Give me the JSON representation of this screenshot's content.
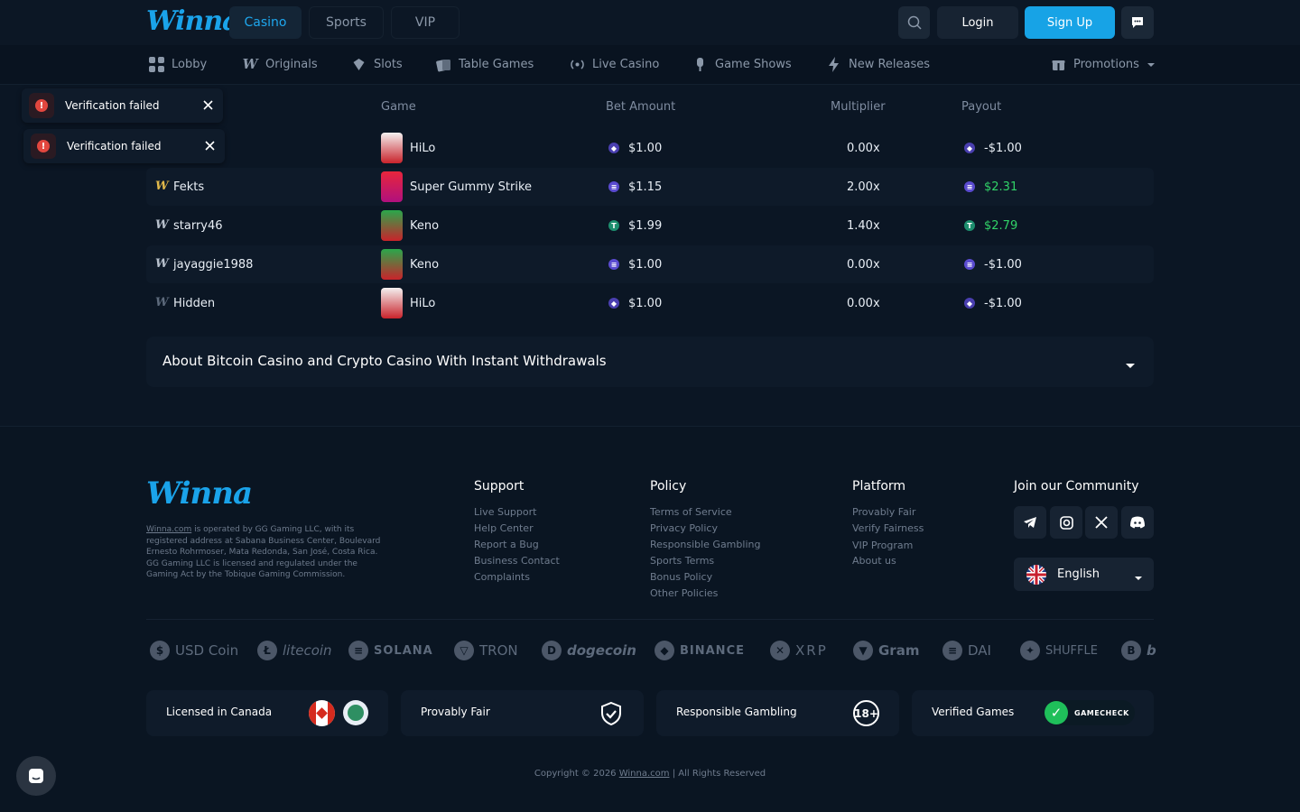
{
  "header": {
    "logo": "Winna",
    "tabs": [
      {
        "label": "Casino",
        "active": true
      },
      {
        "label": "Sports",
        "active": false
      },
      {
        "label": "VIP",
        "active": false
      }
    ],
    "login_label": "Login",
    "signup_label": "Sign Up"
  },
  "nav": {
    "items": [
      {
        "label": "Lobby",
        "icon": "grid-icon"
      },
      {
        "label": "Originals",
        "icon": "winna-w-icon"
      },
      {
        "label": "Slots",
        "icon": "slots-icon"
      },
      {
        "label": "Table Games",
        "icon": "cards-icon"
      },
      {
        "label": "Live Casino",
        "icon": "live-icon"
      },
      {
        "label": "Game Shows",
        "icon": "mic-icon"
      },
      {
        "label": "New Releases",
        "icon": "lightning-icon"
      }
    ],
    "promotions": "Promotions"
  },
  "toasts": [
    {
      "message": "Verification failed"
    },
    {
      "message": "Verification failed"
    }
  ],
  "bets": {
    "headers": {
      "game": "Game",
      "bet_amount": "Bet Amount",
      "multiplier": "Multiplier",
      "payout": "Payout"
    },
    "rows": [
      {
        "user": "",
        "game": "HiLo",
        "bet": "$1.00",
        "multiplier": "0.00x",
        "payout": "-$1.00",
        "coin": "eth",
        "win": false
      },
      {
        "user": "Fekts",
        "game": "Super Gummy Strike",
        "bet": "$1.15",
        "multiplier": "2.00x",
        "payout": "$2.31",
        "coin": "sol",
        "win": true
      },
      {
        "user": "starry46",
        "game": "Keno",
        "bet": "$1.99",
        "multiplier": "1.40x",
        "payout": "$2.79",
        "coin": "usdt",
        "win": true
      },
      {
        "user": "jayaggie1988",
        "game": "Keno",
        "bet": "$1.00",
        "multiplier": "0.00x",
        "payout": "-$1.00",
        "coin": "sol",
        "win": false
      },
      {
        "user": "Hidden",
        "game": "HiLo",
        "bet": "$1.00",
        "multiplier": "0.00x",
        "payout": "-$1.00",
        "coin": "eth",
        "win": false
      }
    ]
  },
  "about": {
    "title": "About Bitcoin Casino and Crypto Casino With Instant Withdrawals"
  },
  "footer": {
    "logo": "Winna",
    "desc_link": "Winna.com",
    "description": " is operated by GG Gaming LLC, with its registered address at Sabana Business Center, Boulevard Ernesto Rohrmoser, Mata Redonda, San José, Costa Rica. GG Gaming LLC is licensed and regulated under the Gaming Act by the Tobique Gaming Commission.",
    "support": {
      "title": "Support",
      "links": [
        "Live Support",
        "Help Center",
        "Report a Bug",
        "Business Contact",
        "Complaints"
      ]
    },
    "policy": {
      "title": "Policy",
      "links": [
        "Terms of Service",
        "Privacy Policy",
        "Responsible Gambling",
        "Sports Terms",
        "Bonus Policy",
        "Other Policies"
      ]
    },
    "platform": {
      "title": "Platform",
      "links": [
        "Provably Fair",
        "Verify Fairness",
        "VIP Program",
        "About us"
      ]
    },
    "community": {
      "title": "Join our Community"
    },
    "language": "English",
    "cryptos": [
      {
        "label": "USD Coin",
        "glyph": "$"
      },
      {
        "label": "litecoin",
        "glyph": "Ł"
      },
      {
        "label": "SOLANA",
        "glyph": "≡"
      },
      {
        "label": "TRON",
        "glyph": "▽"
      },
      {
        "label": "dogecoin",
        "glyph": "D"
      },
      {
        "label": "BINANCE",
        "glyph": "◆"
      },
      {
        "label": "XRP",
        "glyph": "✕"
      },
      {
        "label": "Gram",
        "glyph": "▼"
      },
      {
        "label": "DAI",
        "glyph": "≡"
      },
      {
        "label": "SHUFFLE",
        "glyph": "✦"
      },
      {
        "label": "b",
        "glyph": "B"
      }
    ],
    "badges": [
      {
        "label": "Licensed in Canada"
      },
      {
        "label": "Provably Fair"
      },
      {
        "label": "Responsible Gambling"
      },
      {
        "label": "Verified Games",
        "logo_text": "GAMECHECK"
      }
    ],
    "copyright_pre": "Copyright © 2026 ",
    "copyright_link": "Winna.com",
    "copyright_post": " | All Rights Reserved"
  },
  "colors": {
    "accent": "#17a3e6",
    "win": "#31d368",
    "error": "#e2473f"
  }
}
